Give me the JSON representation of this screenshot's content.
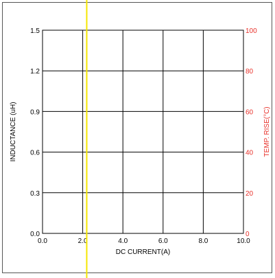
{
  "chart_data": {
    "type": "line",
    "title": "",
    "xlabel": "DC CURRENT(A)",
    "ylabel": "INDUCTANCE (uH)",
    "y2label": "TEMP. RISE(°C)",
    "xlim": [
      0,
      10
    ],
    "ylim": [
      0,
      1.5
    ],
    "y2lim": [
      0,
      100
    ],
    "x_ticks": [
      0,
      2,
      4,
      6,
      8,
      10
    ],
    "x_tick_labels": [
      "0.0",
      "2.0",
      "4.0",
      "6.0",
      "8.0",
      "10.0"
    ],
    "y_ticks": [
      0,
      0.3,
      0.6,
      0.9,
      1.2,
      1.5
    ],
    "y_tick_labels": [
      "0.0",
      "0.3",
      "0.6",
      "0.9",
      "1.2",
      "1.5"
    ],
    "y2_ticks": [
      0,
      20,
      40,
      60,
      80,
      100
    ],
    "y2_tick_labels": [
      "0",
      "20",
      "40",
      "60",
      "80",
      "100"
    ],
    "grid": true,
    "marker_line_x": 2.2,
    "colors": {
      "grid": "#000000",
      "left_axis_text": "#000000",
      "right_axis_text": "#e8312a",
      "marker_line": "#f5e600",
      "frame": "#555555"
    },
    "series": []
  }
}
